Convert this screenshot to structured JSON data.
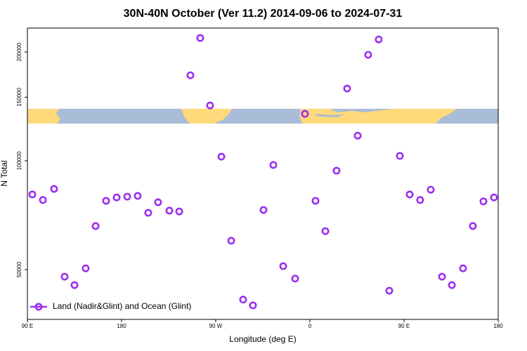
{
  "chart_data": {
    "type": "scatter",
    "title": "30N-40N October (Ver 11.2)   2014-09-06 to 2024-07-31",
    "x_label": "Longitude (deg E)",
    "y_label": "N Total",
    "x": [
      94.7,
      104.8,
      115.5,
      125.6,
      135.0,
      145.7,
      155.2,
      165.2,
      175.3,
      185.4,
      195.4,
      205.5,
      214.9,
      225.7,
      235.1,
      245.8,
      255.2,
      264.6,
      275.4,
      284.8,
      296.2,
      305.6,
      315.7,
      325.1,
      334.5,
      345.9,
      355.3,
      365.4,
      374.8,
      385.5,
      395.6,
      405.7,
      415.7,
      425.8,
      435.9,
      446.0,
      455.4,
      465.4,
      475.5,
      486.3,
      495.7,
      506.4,
      515.8,
      525.9,
      536.0
    ],
    "series": [
      {
        "name": "Land (Nadir&Glint) and Ocean (Glint)",
        "color": "#9b30f0",
        "values": [
          80700,
          77900,
          83600,
          47800,
          45300,
          50400,
          66000,
          77500,
          79200,
          79600,
          80000,
          71800,
          76800,
          72800,
          72400,
          172500,
          218700,
          142300,
          102700,
          60100,
          41300,
          39800,
          73100,
          97400,
          51100,
          47200,
          134900,
          77500,
          63900,
          93900,
          158500,
          117400,
          196500,
          216700,
          43700,
          103200,
          80700,
          77900,
          83200,
          47800,
          45300,
          50400,
          66000,
          77200,
          79200
        ]
      }
    ],
    "xlim": [
      90,
      540
    ],
    "xticks": [
      {
        "value": 90,
        "label": "90 E"
      },
      180,
      {
        "value": 270,
        "label": "90 W"
      },
      {
        "value": 360,
        "label": "0"
      },
      {
        "value": 450,
        "label": "90 E"
      },
      {
        "value": 540,
        "label": "180"
      }
    ],
    "ylim": [
      36400,
      233000
    ],
    "yscale": "log",
    "yticks": [
      50000,
      100000,
      150000,
      200000
    ],
    "legend": "bottom-left"
  }
}
